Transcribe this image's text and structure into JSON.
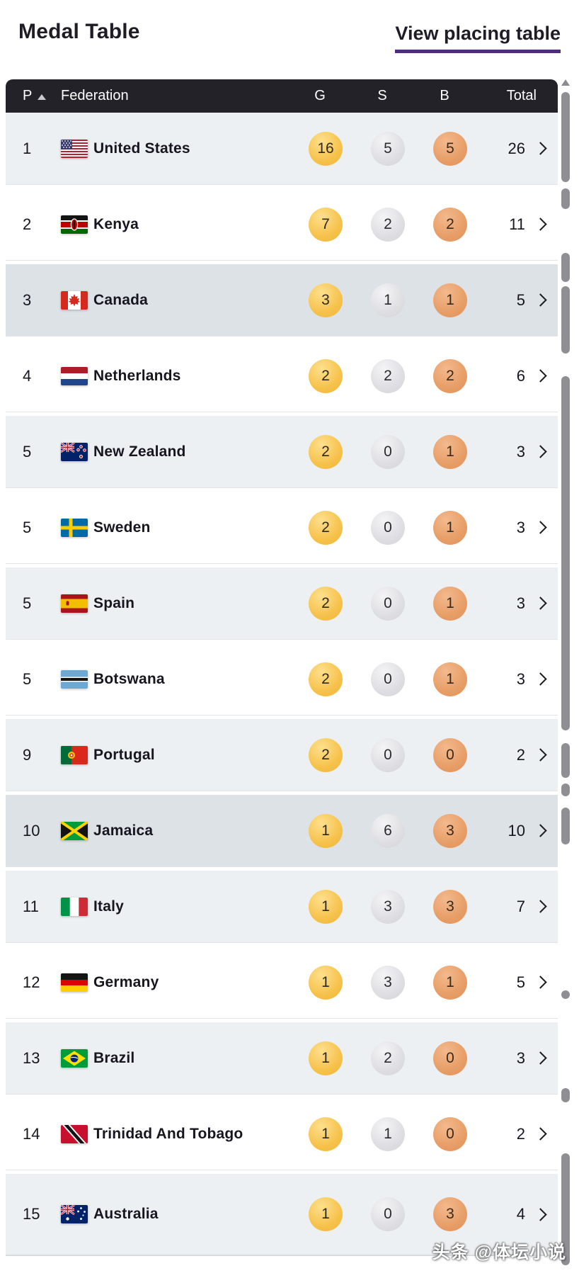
{
  "page": {
    "title": "Medal Table",
    "watermark": "头条 @体坛小说"
  },
  "actions": {
    "view_placing_table": "View placing table"
  },
  "table": {
    "headers": {
      "position": "P",
      "federation": "Federation",
      "gold": "G",
      "silver": "S",
      "bronze": "B",
      "total": "Total"
    },
    "sort": {
      "column": "P",
      "direction": "ascending"
    },
    "rows": [
      {
        "rank": 1,
        "country": "United States",
        "flag": "united-states",
        "gold": 16,
        "silver": 5,
        "bronze": 5,
        "total": 26,
        "highlighted": false
      },
      {
        "rank": 2,
        "country": "Kenya",
        "flag": "kenya",
        "gold": 7,
        "silver": 2,
        "bronze": 2,
        "total": 11,
        "highlighted": false
      },
      {
        "rank": 3,
        "country": "Canada",
        "flag": "canada",
        "gold": 3,
        "silver": 1,
        "bronze": 1,
        "total": 5,
        "highlighted": true
      },
      {
        "rank": 4,
        "country": "Netherlands",
        "flag": "netherlands",
        "gold": 2,
        "silver": 2,
        "bronze": 2,
        "total": 6,
        "highlighted": false
      },
      {
        "rank": 5,
        "country": "New Zealand",
        "flag": "new-zealand",
        "gold": 2,
        "silver": 0,
        "bronze": 1,
        "total": 3,
        "highlighted": false
      },
      {
        "rank": 5,
        "country": "Sweden",
        "flag": "sweden",
        "gold": 2,
        "silver": 0,
        "bronze": 1,
        "total": 3,
        "highlighted": false
      },
      {
        "rank": 5,
        "country": "Spain",
        "flag": "spain",
        "gold": 2,
        "silver": 0,
        "bronze": 1,
        "total": 3,
        "highlighted": false
      },
      {
        "rank": 5,
        "country": "Botswana",
        "flag": "botswana",
        "gold": 2,
        "silver": 0,
        "bronze": 1,
        "total": 3,
        "highlighted": false
      },
      {
        "rank": 9,
        "country": "Portugal",
        "flag": "portugal",
        "gold": 2,
        "silver": 0,
        "bronze": 0,
        "total": 2,
        "highlighted": false
      },
      {
        "rank": 10,
        "country": "Jamaica",
        "flag": "jamaica",
        "gold": 1,
        "silver": 6,
        "bronze": 3,
        "total": 10,
        "highlighted": true
      },
      {
        "rank": 11,
        "country": "Italy",
        "flag": "italy",
        "gold": 1,
        "silver": 3,
        "bronze": 3,
        "total": 7,
        "highlighted": false
      },
      {
        "rank": 12,
        "country": "Germany",
        "flag": "germany",
        "gold": 1,
        "silver": 3,
        "bronze": 1,
        "total": 5,
        "highlighted": false
      },
      {
        "rank": 13,
        "country": "Brazil",
        "flag": "brazil",
        "gold": 1,
        "silver": 2,
        "bronze": 0,
        "total": 3,
        "highlighted": false
      },
      {
        "rank": 14,
        "country": "Trinidad And Tobago",
        "flag": "trinidad-and-tobago",
        "gold": 1,
        "silver": 1,
        "bronze": 0,
        "total": 2,
        "highlighted": false
      },
      {
        "rank": 15,
        "country": "Australia",
        "flag": "australia",
        "gold": 1,
        "silver": 0,
        "bronze": 3,
        "total": 4,
        "highlighted": false
      }
    ]
  },
  "colors": {
    "accent_underline": "#4f2d7d",
    "header_bg": "#242229",
    "gold_badge": "#f6c14a",
    "silver_badge": "#dedee2",
    "bronze_badge": "#e79d66",
    "row_gray": "#edf0f2",
    "row_highlight": "#dde2e6"
  }
}
